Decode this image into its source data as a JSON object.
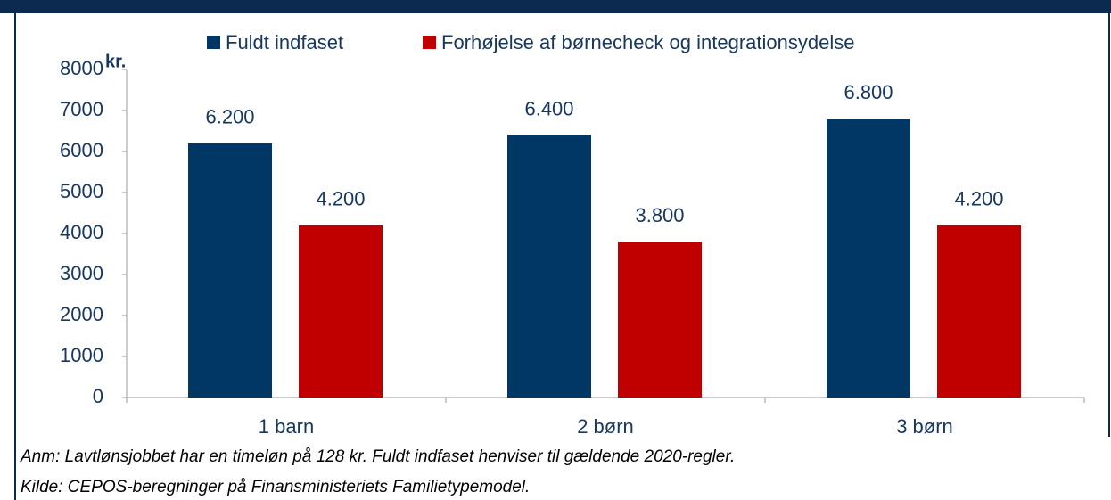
{
  "chart_data": {
    "type": "bar",
    "y_label": "kr.",
    "categories": [
      "1 barn",
      "2 børn",
      "3 børn"
    ],
    "series": [
      {
        "name": "Fuldt indfaset",
        "color": "#003764",
        "values": [
          6200,
          6400,
          6800
        ],
        "value_labels": [
          "6.200",
          "6.400",
          "6.800"
        ]
      },
      {
        "name": "Forhøjelse af børnecheck og integrationsydelse",
        "color": "#c00000",
        "values": [
          4200,
          3800,
          4200
        ],
        "value_labels": [
          "4.200",
          "3.800",
          "4.200"
        ]
      }
    ],
    "ylim": [
      0,
      8000
    ],
    "yticks": [
      0,
      1000,
      2000,
      3000,
      4000,
      5000,
      6000,
      7000,
      8000
    ],
    "legend": "top"
  },
  "notes": [
    "Anm: Lavtlønsjobbet har en timeløn på 128 kr. Fuldt indfaset henviser til gældende 2020-regler.",
    "Kilde: CEPOS-beregninger på Finansministeriets Familietypemodel."
  ]
}
